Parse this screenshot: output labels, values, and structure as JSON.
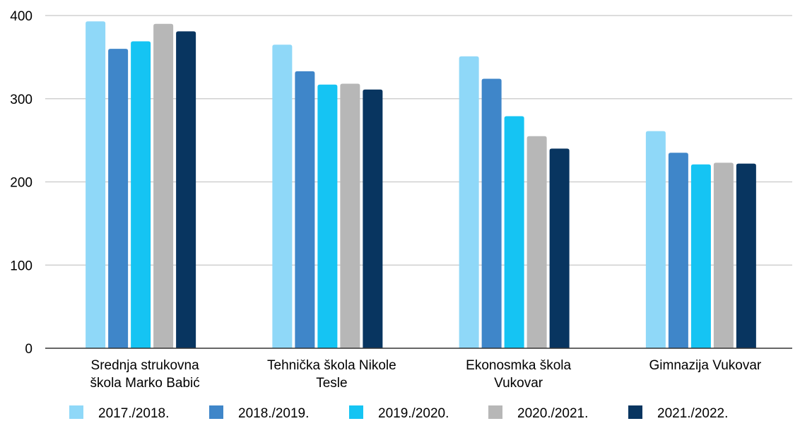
{
  "chart_data": {
    "type": "bar",
    "categories": [
      [
        "Srednja strukovna",
        "škola Marko Babić"
      ],
      [
        "Tehnička škola Nikole",
        "Tesle"
      ],
      [
        "Ekonosmka škola",
        "Vukovar"
      ],
      [
        "Gimnazija Vukovar"
      ]
    ],
    "series": [
      {
        "name": "2017./2018.",
        "color": "#8fd8f8",
        "values": [
          393,
          365,
          351,
          261
        ]
      },
      {
        "name": "2018./2019.",
        "color": "#3f86c9",
        "values": [
          360,
          333,
          324,
          235
        ]
      },
      {
        "name": "2019./2020.",
        "color": "#15c4f3",
        "values": [
          369,
          317,
          279,
          221
        ]
      },
      {
        "name": "2020./2021.",
        "color": "#b7b7b7",
        "values": [
          390,
          318,
          255,
          223
        ]
      },
      {
        "name": "2021./2022.",
        "color": "#083560",
        "values": [
          381,
          311,
          240,
          222
        ]
      }
    ],
    "ylim": [
      0,
      400
    ],
    "yticks": [
      0,
      100,
      200,
      300,
      400
    ],
    "grid": true,
    "legend": "bottom"
  }
}
